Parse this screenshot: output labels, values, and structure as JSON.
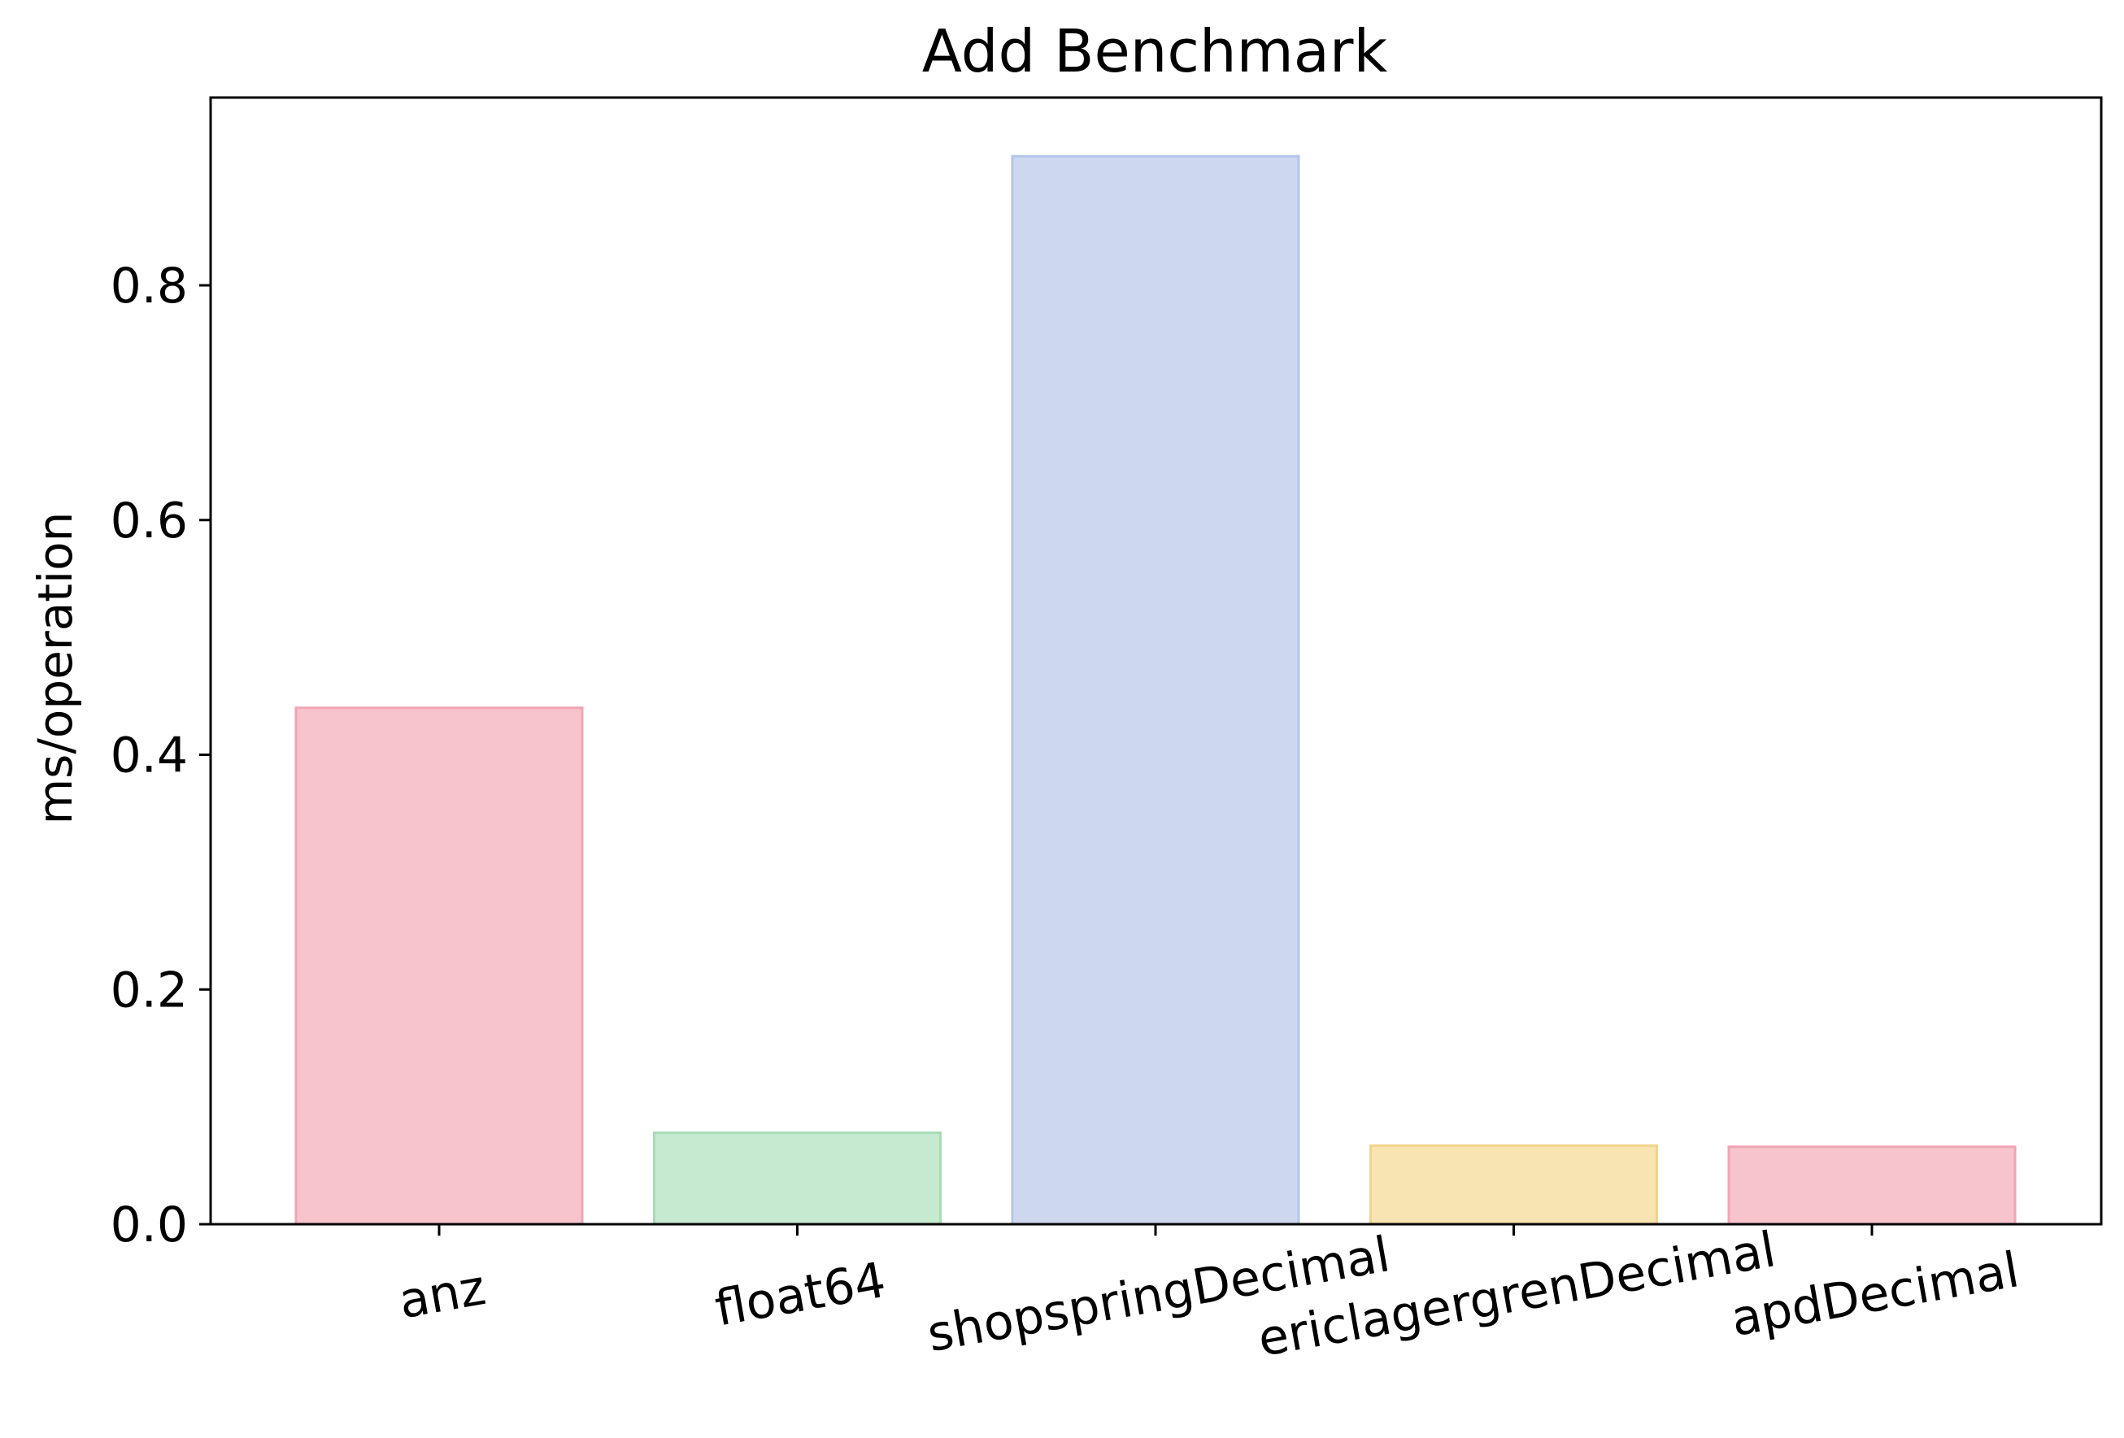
{
  "chart_data": {
    "type": "bar",
    "title": "Add Benchmark",
    "xlabel": "",
    "ylabel": "ms/operation",
    "categories": [
      "anz",
      "float64",
      "shopspringDecimal",
      "ericlagergrenDecimal",
      "apdDecimal"
    ],
    "values": [
      0.44,
      0.078,
      0.91,
      0.067,
      0.066
    ],
    "ylim": [
      0,
      0.96
    ],
    "yticks": [
      0.0,
      0.2,
      0.4,
      0.6,
      0.8
    ],
    "ytick_labels": [
      "0.0",
      "0.2",
      "0.4",
      "0.6",
      "0.8"
    ],
    "bar_colors": [
      "#f7c4ce",
      "#c6ead0",
      "#cdd8ef",
      "#f8e3b2",
      "#f7c4ce"
    ],
    "bar_edge_colors": [
      "#f1a4b4",
      "#a7dcb6",
      "#b4c5ea",
      "#f2d38d",
      "#f1a4b4"
    ],
    "grid": false,
    "legend": "none"
  }
}
